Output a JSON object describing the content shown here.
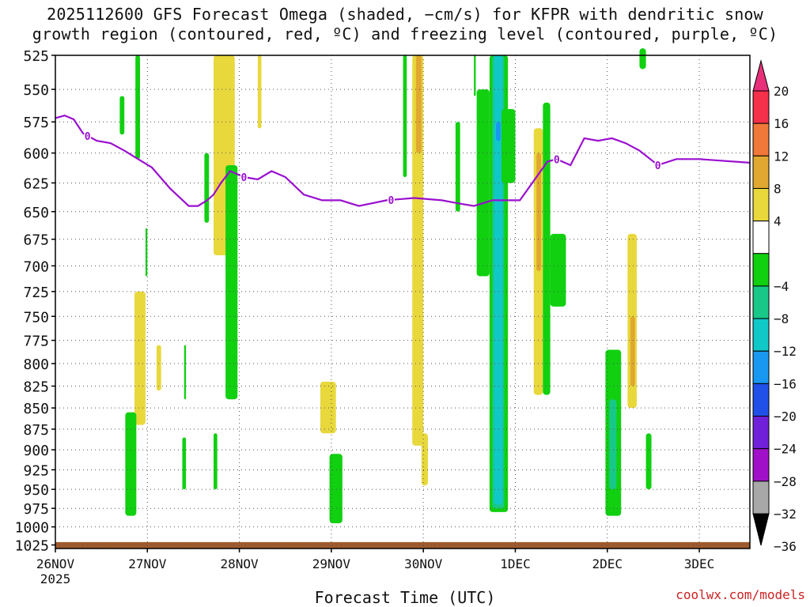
{
  "title": {
    "line1": "2025112600 GFS Forecast Omega (shaded, −cm/s) for KFPR with dendritic snow",
    "line2": "growth region (contoured, red, ºC) and freezing level (contoured, purple, ºC)"
  },
  "credit": "coolwx.com/models",
  "chart_data": {
    "type": "heatmap",
    "xlabel": "Forecast Time (UTC)",
    "ylabel": "",
    "x_tick_labels": [
      "26NOV",
      "27NOV",
      "28NOV",
      "29NOV",
      "30NOV",
      "1DEC",
      "2DEC",
      "3DEC"
    ],
    "x_tick_sublabel": "2025",
    "xlim_days": [
      0,
      7.55
    ],
    "y_ticks": [
      525,
      550,
      575,
      600,
      625,
      650,
      675,
      700,
      725,
      750,
      775,
      800,
      825,
      850,
      875,
      900,
      925,
      950,
      975,
      1000,
      1025
    ],
    "ylim": [
      525,
      1030
    ],
    "yscale": "log",
    "grid": true,
    "colorbar": {
      "labels": [
        "20",
        "16",
        "12",
        "8",
        "4",
        "−4",
        "−8",
        "−12",
        "−16",
        "−20",
        "−24",
        "−28",
        "−32",
        "−36"
      ],
      "bands": [
        {
          "range": [
            16,
            20
          ],
          "color": "#f4304a"
        },
        {
          "range": [
            12,
            16
          ],
          "color": "#f07838"
        },
        {
          "range": [
            8,
            12
          ],
          "color": "#e0a830"
        },
        {
          "range": [
            4,
            8
          ],
          "color": "#e8d83c"
        },
        {
          "range": [
            -4,
            4
          ],
          "color": "#ffffff"
        },
        {
          "range": [
            -8,
            -4
          ],
          "color": "#10d010"
        },
        {
          "range": [
            -12,
            -8
          ],
          "color": "#18c888"
        },
        {
          "range": [
            -16,
            -12
          ],
          "color": "#10c8c8"
        },
        {
          "range": [
            -20,
            -16
          ],
          "color": "#1898f0"
        },
        {
          "range": [
            -24,
            -20
          ],
          "color": "#2050e8"
        },
        {
          "range": [
            -28,
            -24
          ],
          "color": "#7020d8"
        },
        {
          "range": [
            -32,
            -28
          ],
          "color": "#a010c8"
        },
        {
          "range": [
            -36,
            -32
          ],
          "color": "#a8a8a8"
        }
      ],
      "top_arrow_color": "#e8307a",
      "bottom_arrow_color": "#000000"
    },
    "omega_regions": [
      {
        "color": "#10d010",
        "x": [
          0.7,
          0.75
        ],
        "p": [
          555,
          585
        ]
      },
      {
        "color": "#10d010",
        "x": [
          0.87,
          0.92
        ],
        "p": [
          525,
          605
        ]
      },
      {
        "color": "#10d010",
        "x": [
          0.98,
          1.0
        ],
        "p": [
          665,
          710
        ]
      },
      {
        "color": "#e8d83c",
        "x": [
          0.86,
          0.98
        ],
        "p": [
          725,
          870
        ]
      },
      {
        "color": "#e8d83c",
        "x": [
          1.1,
          1.15
        ],
        "p": [
          780,
          830
        ]
      },
      {
        "color": "#10d010",
        "x": [
          0.76,
          0.88
        ],
        "p": [
          855,
          985
        ]
      },
      {
        "color": "#10d010",
        "x": [
          1.4,
          1.42
        ],
        "p": [
          780,
          840
        ]
      },
      {
        "color": "#10d010",
        "x": [
          1.38,
          1.42
        ],
        "p": [
          885,
          950
        ]
      },
      {
        "color": "#e8d83c",
        "x": [
          1.72,
          1.95
        ],
        "p": [
          525,
          690
        ]
      },
      {
        "color": "#10d010",
        "x": [
          1.62,
          1.67
        ],
        "p": [
          600,
          660
        ]
      },
      {
        "color": "#10d010",
        "x": [
          1.85,
          1.98
        ],
        "p": [
          610,
          840
        ]
      },
      {
        "color": "#10d010",
        "x": [
          1.72,
          1.76
        ],
        "p": [
          880,
          950
        ]
      },
      {
        "color": "#e8d83c",
        "x": [
          2.2,
          2.24
        ],
        "p": [
          525,
          580
        ]
      },
      {
        "color": "#e8d83c",
        "x": [
          2.88,
          3.05
        ],
        "p": [
          820,
          880
        ]
      },
      {
        "color": "#10d010",
        "x": [
          2.98,
          3.12
        ],
        "p": [
          905,
          995
        ]
      },
      {
        "color": "#e8d83c",
        "x": [
          3.88,
          4.0
        ],
        "p": [
          525,
          895
        ]
      },
      {
        "color": "#e0a830",
        "x": [
          3.92,
          3.98
        ],
        "p": [
          525,
          600
        ]
      },
      {
        "color": "#10d010",
        "x": [
          3.78,
          3.82
        ],
        "p": [
          525,
          620
        ]
      },
      {
        "color": "#e8d83c",
        "x": [
          3.98,
          4.05
        ],
        "p": [
          880,
          945
        ]
      },
      {
        "color": "#10d010",
        "x": [
          4.35,
          4.4
        ],
        "p": [
          575,
          650
        ]
      },
      {
        "color": "#10d010",
        "x": [
          4.55,
          4.57
        ],
        "p": [
          525,
          555
        ]
      },
      {
        "color": "#10d010",
        "x": [
          4.58,
          4.72
        ],
        "p": [
          550,
          710
        ]
      },
      {
        "color": "#10d010",
        "x": [
          4.72,
          4.92
        ],
        "p": [
          525,
          980
        ]
      },
      {
        "color": "#18c888",
        "x": [
          4.75,
          4.88
        ],
        "p": [
          525,
          975
        ]
      },
      {
        "color": "#10c8c8",
        "x": [
          4.77,
          4.86
        ],
        "p": [
          525,
          970
        ]
      },
      {
        "color": "#1898f0",
        "x": [
          4.79,
          4.84
        ],
        "p": [
          575,
          590
        ]
      },
      {
        "color": "#10d010",
        "x": [
          4.85,
          5.0
        ],
        "p": [
          565,
          625
        ]
      },
      {
        "color": "#e8d83c",
        "x": [
          5.2,
          5.3
        ],
        "p": [
          580,
          835
        ]
      },
      {
        "color": "#e0a830",
        "x": [
          5.23,
          5.28
        ],
        "p": [
          600,
          705
        ]
      },
      {
        "color": "#10d010",
        "x": [
          5.3,
          5.38
        ],
        "p": [
          560,
          835
        ]
      },
      {
        "color": "#10d010",
        "x": [
          5.38,
          5.55
        ],
        "p": [
          670,
          740
        ]
      },
      {
        "color": "#10d010",
        "x": [
          6.35,
          6.42
        ],
        "p": [
          520,
          535
        ]
      },
      {
        "color": "#e8d83c",
        "x": [
          6.22,
          6.32
        ],
        "p": [
          670,
          850
        ]
      },
      {
        "color": "#e0a830",
        "x": [
          6.25,
          6.3
        ],
        "p": [
          750,
          825
        ]
      },
      {
        "color": "#10d010",
        "x": [
          5.98,
          6.15
        ],
        "p": [
          785,
          985
        ]
      },
      {
        "color": "#18c888",
        "x": [
          6.02,
          6.1
        ],
        "p": [
          840,
          950
        ]
      },
      {
        "color": "#10d010",
        "x": [
          6.42,
          6.48
        ],
        "p": [
          880,
          950
        ]
      }
    ],
    "freezing_level": {
      "contour_label": "0",
      "color": "#9a0fcf",
      "x": [
        0.0,
        0.1,
        0.2,
        0.3,
        0.45,
        0.6,
        0.75,
        0.9,
        1.05,
        1.25,
        1.45,
        1.55,
        1.65,
        1.72,
        1.8,
        1.9,
        2.05,
        2.2,
        2.35,
        2.5,
        2.7,
        2.9,
        3.1,
        3.3,
        3.6,
        3.9,
        4.2,
        4.4,
        4.55,
        4.75,
        4.95,
        5.05,
        5.35,
        5.45,
        5.6,
        5.75,
        5.9,
        6.05,
        6.2,
        6.35,
        6.55,
        6.75,
        7.0,
        7.55
      ],
      "p": [
        572,
        570,
        573,
        584,
        590,
        592,
        598,
        605,
        612,
        630,
        645,
        645,
        640,
        635,
        625,
        615,
        620,
        622,
        615,
        620,
        635,
        640,
        640,
        645,
        640,
        638,
        640,
        643,
        645,
        640,
        640,
        640,
        607,
        605,
        610,
        588,
        590,
        588,
        592,
        598,
        610,
        605,
        605,
        608
      ]
    },
    "terrain": {
      "color": "#a05a2c",
      "p_top": [
        1021,
        1023
      ]
    }
  }
}
